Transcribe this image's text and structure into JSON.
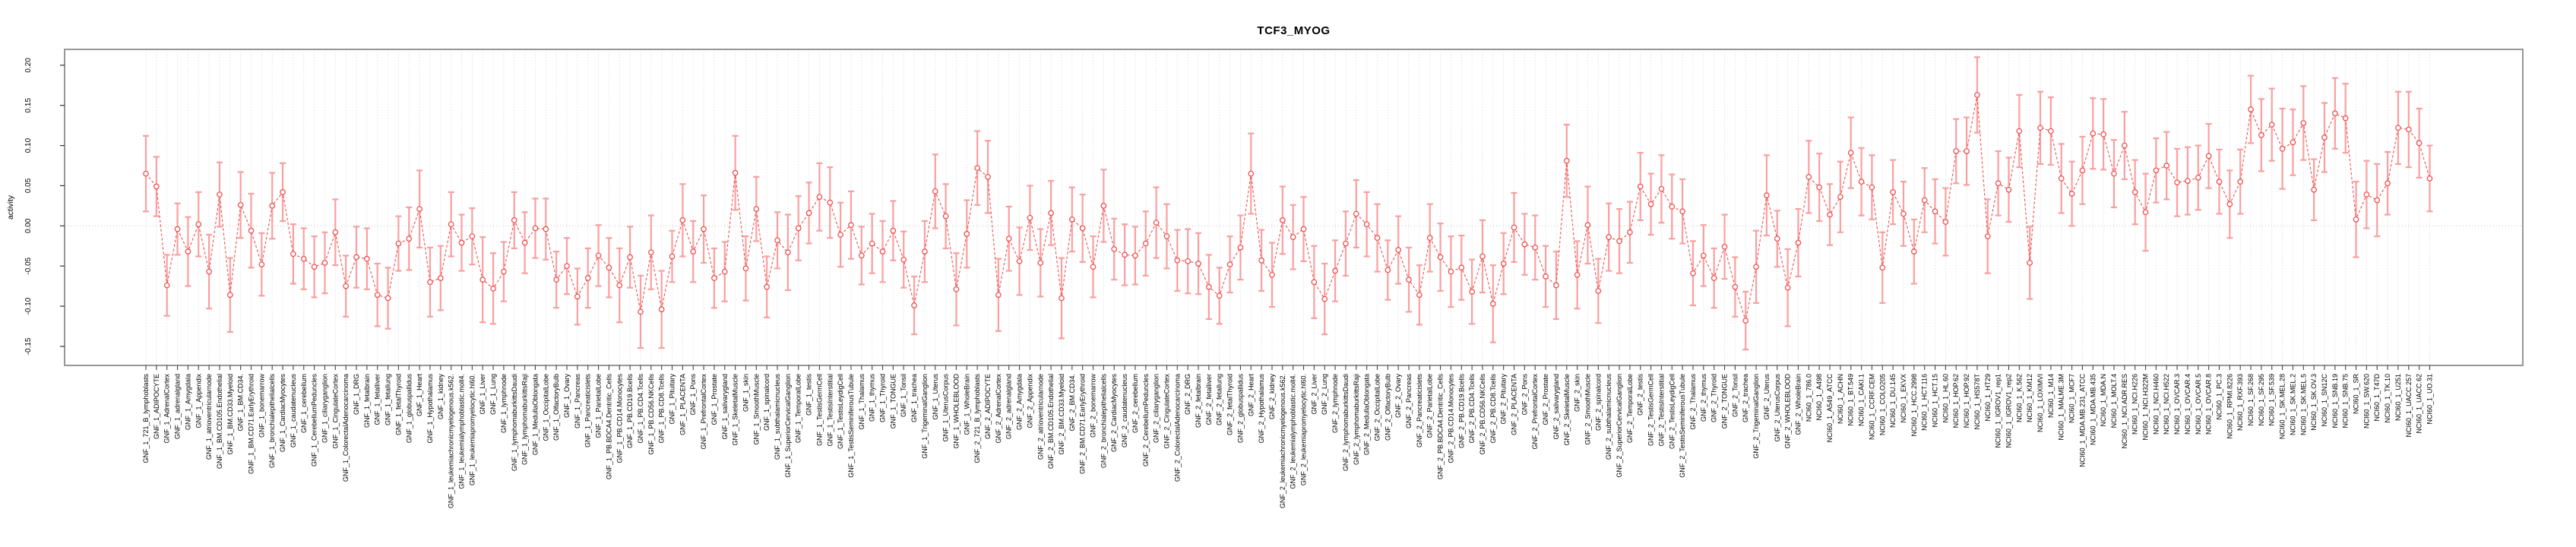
{
  "title": "TCF3_MYOG",
  "chart_data": {
    "type": "line",
    "subtype": "point-range (means with error bars)",
    "title": "TCF3_MYOG",
    "xlabel": "",
    "ylabel": "activity",
    "ylim": [
      -0.17,
      0.22
    ],
    "yticks": [
      -0.15,
      -0.1,
      -0.05,
      0.0,
      0.05,
      0.1,
      0.15,
      0.2
    ],
    "y_tick_labels": [
      "-0.15",
      "-0.10",
      "-0.05",
      "0.00",
      "0.05",
      "0.10",
      "0.15",
      "0.20"
    ],
    "grid": "dotted vertical gridline at every category; dotted horizontal line at y=0",
    "legend": "none",
    "series_color": "#f05050",
    "errorbar_color": "#fa9f9f",
    "grid_color": "#d2d2d2",
    "box_color": "#8c8c8c",
    "categories": [
      "GNF_1_721_B_lymphoblasts",
      "GNF_1_ADIPOCYTE",
      "GNF_1_AdrenalCortex",
      "GNF_1_adrenalgland",
      "GNF_1_Amygdala",
      "GNF_1_Appendix",
      "GNF_1_atrioventricularnode",
      "GNF_1_BM.CD105.Endothelial",
      "GNF_1_BM.CD33.Myeloid",
      "GNF_1_BM.CD34.",
      "GNF_1_BM.CD71.EarlyErythroid",
      "GNF_1_bonemarrow",
      "GNF_1_bronchialepithelialcells",
      "GNF_1_CardiacMyocytes",
      "GNF_1_caudatenucleus",
      "GNF_1_cerebellum",
      "GNF_1_CerebellumPeduncles",
      "GNF_1_ciliaryganglion",
      "GNF_1_CingulateCortex",
      "GNF_1_ColorectalAdenocarcinoma",
      "GNF_1_DRG",
      "GNF_1_fetalbrain",
      "GNF_1_fetalliver",
      "GNF_1_fetallung",
      "GNF_1_fetalThyroid",
      "GNF_1_globuspallidus",
      "GNF_1_Heart",
      "GNF_1_Hypothalamus",
      "GNF_1_kidney",
      "GNF_1_leukemiachronicmyelogenous.k562.",
      "GNF_1_leukemialymphoblastic.molt4.",
      "GNF_1_leukemiapromyelocytic.hl60.",
      "GNF_1_Liver",
      "GNF_1_Lung",
      "GNF_1_lymphnode",
      "GNF_1_lymphomaburkittsDaudi",
      "GNF_1_lymphomaburkittsRaji",
      "GNF_1_MedullaOblongata",
      "GNF_1_OccipitalLobe",
      "GNF_1_OlfactoryBulb",
      "GNF_1_Ovary",
      "GNF_1_Pancreas",
      "GNF_1_Pancreaticislets",
      "GNF_1_ParietalLobe",
      "GNF_1_PB.BDCA4.Dentritic_Cells",
      "GNF_1_PB.CD14.Monocytes",
      "GNF_1_PB.CD19.Bcells",
      "GNF_1_PB.CD4.Tcells",
      "GNF_1_PB.CD56.NKCells",
      "GNF_1_PB.CD8.Tcells",
      "GNF_1_Pituitary",
      "GNF_1_PLACENTA",
      "GNF_1_Pons",
      "GNF_1_PrefrontalCortex",
      "GNF_1_Prostate",
      "GNF_1_salivarygland",
      "GNF_1_SkeletalMuscle",
      "GNF_1_skin",
      "GNF_1_SmoothMuscle",
      "GNF_1_spinalcord",
      "GNF_1_subthalamicnucleus",
      "GNF_1_SuperiorCervicalGanglion",
      "GNF_1_TemporalLobe",
      "GNF_1_testis",
      "GNF_1_TestisGermCell",
      "GNF_1_TestisInterstitial",
      "GNF_1_TestisLeydigCell",
      "GNF_1_TestisSeminiferousTubule",
      "GNF_1_Thalamus",
      "GNF_1_thymus",
      "GNF_1_Thyroid",
      "GNF_1_TONGUE",
      "GNF_1_Tonsil",
      "GNF_1_trachea",
      "GNF_1_TrigeminalGanglion",
      "GNF_1_Uterus",
      "GNF_1_UterusCorpus",
      "GNF_1_WHOLEBLOOD",
      "GNF_1_WholeBrain",
      "GNF_2_721_B_lymphoblasts",
      "GNF_2_ADIPOCYTE",
      "GNF_2_AdrenalCortex",
      "GNF_2_adrenalgland",
      "GNF_2_Amygdala",
      "GNF_2_Appendix",
      "GNF_2_atrioventricularnode",
      "GNF_2_BM.CD105.Endothelial",
      "GNF_2_BM.CD33.Myeloid",
      "GNF_2_BM.CD34.",
      "GNF_2_BM.CD71.EarlyErythroid",
      "GNF_2_bonemarrow",
      "GNF_2_bronchialepithelialcells",
      "GNF_2_CardiacMyocytes",
      "GNF_2_caudatenucleus",
      "GNF_2_cerebellum",
      "GNF_2_CerebellumPeduncles",
      "GNF_2_ciliaryganglion",
      "GNF_2_CingulateCortex",
      "GNF_2_ColorectalAdenocarcinoma",
      "GNF_2_DRG",
      "GNF_2_fetalbrain",
      "GNF_2_fetalliver",
      "GNF_2_fetallung",
      "GNF_2_fetalThyroid",
      "GNF_2_globuspallidus",
      "GNF_2_Heart",
      "GNF_2_Hypothalamus",
      "GNF_2_kidney",
      "GNF_2_leukemiachronicmyelogenous.k562.",
      "GNF_2_leukemialymphoblastic.molt4.",
      "GNF_2_leukemiapromyelocytic.hl60.",
      "GNF_2_Liver",
      "GNF_2_Lung",
      "GNF_2_lymphnode",
      "GNF_2_lymphomaburkittsDaudi",
      "GNF_2_lymphomaburkittsRaji",
      "GNF_2_MedullaOblongata",
      "GNF_2_OccipitalLobe",
      "GNF_2_OlfactoryBulb",
      "GNF_2_Ovary",
      "GNF_2_Pancreas",
      "GNF_2_Pancreaticislets",
      "GNF_2_ParietalLobe",
      "GNF_2_PB.BDCA4.Dentritic_Cells",
      "GNF_2_PB.CD14.Monocytes",
      "GNF_2_PB.CD19.Bcells",
      "GNF_2_PB.CD4.Tcells",
      "GNF_2_PB.CD56.NKCells",
      "GNF_2_PB.CD8.Tcells",
      "GNF_2_Pituitary",
      "GNF_2_PLACENTA",
      "GNF_2_Pons",
      "GNF_2_PrefrontalCortex",
      "GNF_2_Prostate",
      "GNF_2_salivarygland",
      "GNF_2_SkeletalMuscle",
      "GNF_2_skin",
      "GNF_2_SmoothMuscle",
      "GNF_2_spinalcord",
      "GNF_2_subthalamicnucleus",
      "GNF_2_SuperiorCervicalGanglion",
      "GNF_2_TemporalLobe",
      "GNF_2_testis",
      "GNF_2_TestisGermCell",
      "GNF_2_TestisInterstitial",
      "GNF_2_TestisLeydigCell",
      "GNF_2_TestisSeminiferousTubule",
      "GNF_2_Thalamus",
      "GNF_2_thymus",
      "GNF_2_Thyroid",
      "GNF_2_TONGUE",
      "GNF_2_Tonsil",
      "GNF_2_trachea",
      "GNF_2_TrigeminalGanglion",
      "GNF_2_Uterus",
      "GNF_2_UterusCorpus",
      "GNF_2_WHOLEBLOOD",
      "GNF_2_WholeBrain",
      "NCI60_1_786.0",
      "NCI60_1_A498",
      "NCI60_1_A549_ATCC",
      "NCI60_1_ACHN",
      "NCI60_1_BT.549",
      "NCI60_1_CAKI.1",
      "NCI60_1_CCRF.CEM",
      "NCI60_1_COLO205",
      "NCI60_1_DU.145",
      "NCI60_1_EKVX",
      "NCI60_1_HCC.2998",
      "NCI60_1_HCT.116",
      "NCI60_1_HCT.15",
      "NCI60_1_HL.60",
      "NCI60_1_HOP.62",
      "NCI60_1_HOP.92",
      "NCI60_1_HS578T",
      "NCI60_1_HT29",
      "NCI60_1_IGROV1_rep1",
      "NCI60_1_IGROV1_rep2",
      "NCI60_1_K.562",
      "NCI60_1_KM12",
      "NCI60_1_LOXIMVI",
      "NCI60_1_M14",
      "NCI60_1_MALME.3M",
      "NCI60_1_MCF7",
      "NCI60_1_MDA.MB.231_ATCC",
      "NCI60_1_MDA.MB.435",
      "NCI60_1_MDA.N",
      "NCI60_1_MOLT.4",
      "NCI60_1_NCI.ADR.RES",
      "NCI60_1_NCI.H226",
      "NCI60_1_NCI.H322M",
      "NCI60_1_NCI.H460",
      "NCI60_1_NCI.H522",
      "NCI60_1_OVCAR.3",
      "NCI60_1_OVCAR.4",
      "NCI60_1_OVCAR.5",
      "NCI60_1_OVCAR.8",
      "NCI60_1_PC.3",
      "NCI60_1_RPMI.8226",
      "NCI60_1_RXF.393",
      "NCI60_1_SF.268",
      "NCI60_1_SF.295",
      "NCI60_1_SF.539",
      "NCI60_1_SK.MEL.28",
      "NCI60_1_SK.MEL.2",
      "NCI60_1_SK.MEL.5",
      "NCI60_1_SK.OV.3",
      "NCI60_1_SN12C",
      "NCI60_1_SNB.19",
      "NCI60_1_SNB.75",
      "NCI60_1_SR",
      "NCI60_1_SW.620",
      "NCI60_1_T47D",
      "NCI60_1_TK.10",
      "NCI60_1_U251",
      "NCI60_1_UACC.257",
      "NCI60_1_UACC.62",
      "NCI60_1_UO.31"
    ],
    "values": [
      0.065,
      0.049,
      -0.074,
      -0.004,
      -0.032,
      0.002,
      -0.057,
      0.039,
      -0.086,
      0.026,
      -0.006,
      -0.048,
      0.025,
      0.042,
      -0.035,
      -0.041,
      -0.051,
      -0.046,
      -0.008,
      -0.075,
      -0.039,
      -0.041,
      -0.086,
      -0.09,
      -0.022,
      -0.016,
      0.021,
      -0.07,
      -0.065,
      0.002,
      -0.021,
      -0.013,
      -0.067,
      -0.078,
      -0.057,
      0.007,
      -0.021,
      -0.003,
      -0.004,
      -0.067,
      -0.05,
      -0.088,
      -0.065,
      -0.037,
      -0.052,
      -0.074,
      -0.039,
      -0.107,
      -0.033,
      -0.104,
      -0.038,
      0.007,
      -0.032,
      -0.004,
      -0.065,
      -0.057,
      0.066,
      -0.053,
      0.021,
      -0.076,
      -0.018,
      -0.033,
      -0.003,
      0.016,
      0.036,
      0.029,
      -0.011,
      0.001,
      -0.037,
      -0.022,
      -0.032,
      -0.006,
      -0.042,
      -0.099,
      -0.032,
      0.043,
      0.012,
      -0.079,
      -0.01,
      0.072,
      0.061,
      -0.086,
      -0.016,
      -0.044,
      0.01,
      -0.046,
      0.016,
      -0.09,
      0.008,
      -0.003,
      -0.051,
      0.025,
      -0.029,
      -0.036,
      -0.037,
      -0.022,
      0.004,
      -0.013,
      -0.043,
      -0.044,
      -0.047,
      -0.076,
      -0.087,
      -0.048,
      -0.027,
      0.065,
      -0.043,
      -0.061,
      0.007,
      -0.014,
      -0.004,
      -0.07,
      -0.091,
      -0.056,
      -0.022,
      0.015,
      0.002,
      -0.015,
      -0.055,
      -0.03,
      -0.067,
      -0.086,
      -0.015,
      -0.039,
      -0.057,
      -0.052,
      -0.082,
      -0.038,
      -0.097,
      -0.047,
      -0.002,
      -0.023,
      -0.027,
      -0.063,
      -0.074,
      0.081,
      -0.061,
      0.001,
      -0.081,
      -0.014,
      -0.019,
      -0.008,
      0.049,
      0.027,
      0.046,
      0.024,
      0.018,
      -0.059,
      -0.037,
      -0.065,
      -0.026,
      -0.076,
      -0.118,
      -0.051,
      0.038,
      -0.016,
      -0.077,
      -0.021,
      0.061,
      0.048,
      0.014,
      0.036,
      0.091,
      0.055,
      0.048,
      -0.052,
      0.042,
      0.015,
      -0.032,
      0.032,
      0.018,
      0.005,
      0.093,
      0.093,
      0.163,
      -0.013,
      0.053,
      0.045,
      0.118,
      -0.046,
      0.122,
      0.118,
      0.059,
      0.04,
      0.069,
      0.115,
      0.114,
      0.065,
      0.1,
      0.042,
      0.017,
      0.069,
      0.075,
      0.054,
      0.056,
      0.06,
      0.087,
      0.055,
      0.027,
      0.055,
      0.145,
      0.113,
      0.126,
      0.096,
      0.104,
      0.128,
      0.045,
      0.11,
      0.14,
      0.134,
      0.008,
      0.039,
      0.032,
      0.053,
      0.122,
      0.12,
      0.103,
      0.059
    ],
    "errors": [
      0.047,
      0.037,
      0.038,
      0.032,
      0.043,
      0.04,
      0.046,
      0.04,
      0.046,
      0.041,
      0.046,
      0.039,
      0.041,
      0.036,
      0.037,
      0.038,
      0.038,
      0.038,
      0.041,
      0.038,
      0.038,
      0.038,
      0.039,
      0.038,
      0.034,
      0.039,
      0.048,
      0.043,
      0.04,
      0.04,
      0.035,
      0.035,
      0.053,
      0.044,
      0.037,
      0.035,
      0.038,
      0.037,
      0.038,
      0.035,
      0.035,
      0.035,
      0.037,
      0.038,
      0.037,
      0.046,
      0.038,
      0.045,
      0.046,
      0.048,
      0.032,
      0.045,
      0.038,
      0.042,
      0.037,
      0.037,
      0.046,
      0.04,
      0.04,
      0.038,
      0.035,
      0.047,
      0.04,
      0.038,
      0.042,
      0.044,
      0.04,
      0.042,
      0.036,
      0.037,
      0.038,
      0.037,
      0.035,
      0.036,
      0.038,
      0.046,
      0.04,
      0.045,
      0.042,
      0.046,
      0.045,
      0.045,
      0.04,
      0.042,
      0.04,
      0.042,
      0.04,
      0.05,
      0.04,
      0.042,
      0.038,
      0.045,
      0.038,
      0.038,
      0.036,
      0.04,
      0.044,
      0.04,
      0.038,
      0.04,
      0.038,
      0.04,
      0.035,
      0.035,
      0.04,
      0.05,
      0.038,
      0.04,
      0.042,
      0.04,
      0.04,
      0.045,
      0.044,
      0.038,
      0.04,
      0.042,
      0.04,
      0.042,
      0.037,
      0.042,
      0.04,
      0.037,
      0.042,
      0.042,
      0.044,
      0.04,
      0.04,
      0.045,
      0.048,
      0.038,
      0.043,
      0.038,
      0.04,
      0.038,
      0.042,
      0.045,
      0.042,
      0.048,
      0.04,
      0.042,
      0.04,
      0.038,
      0.042,
      0.038,
      0.042,
      0.04,
      0.04,
      0.04,
      0.038,
      0.037,
      0.04,
      0.037,
      0.036,
      0.045,
      0.05,
      0.035,
      0.048,
      0.042,
      0.045,
      0.042,
      0.038,
      0.044,
      0.044,
      0.042,
      0.04,
      0.044,
      0.04,
      0.04,
      0.04,
      0.04,
      0.04,
      0.042,
      0.04,
      0.042,
      0.047,
      0.046,
      0.04,
      0.04,
      0.045,
      0.045,
      0.045,
      0.042,
      0.043,
      0.04,
      0.042,
      0.044,
      0.044,
      0.042,
      0.042,
      0.04,
      0.048,
      0.04,
      0.042,
      0.042,
      0.042,
      0.04,
      0.04,
      0.04,
      0.042,
      0.04,
      0.042,
      0.045,
      0.045,
      0.05,
      0.041,
      0.046,
      0.038,
      0.043,
      0.044,
      0.043,
      0.047,
      0.042,
      0.045,
      0.039,
      0.045,
      0.047,
      0.043,
      0.041
    ]
  }
}
